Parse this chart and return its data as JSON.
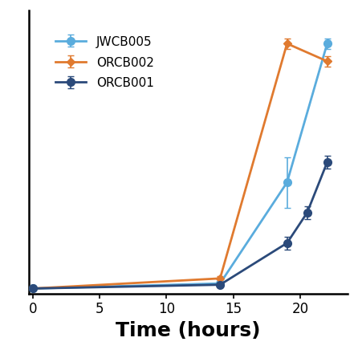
{
  "series": [
    {
      "label": "JWCB005",
      "x": [
        0,
        14,
        19,
        22
      ],
      "y": [
        0.0,
        0.02,
        0.42,
        0.97
      ],
      "yerr": [
        0.0,
        0.005,
        0.1,
        0.02
      ],
      "color": "#5aacdd",
      "marker": "o",
      "markersize": 7,
      "linewidth": 2.0
    },
    {
      "label": "ORCB002",
      "x": [
        0,
        14,
        19,
        22
      ],
      "y": [
        0.0,
        0.04,
        0.97,
        0.9
      ],
      "yerr": [
        0.0,
        0.01,
        0.02,
        0.02
      ],
      "color": "#e07a2f",
      "marker": "D",
      "markersize": 5,
      "linewidth": 2.0
    },
    {
      "label": "ORCB001",
      "x": [
        0,
        14,
        19,
        20.5,
        22
      ],
      "y": [
        0.0,
        0.015,
        0.18,
        0.3,
        0.5
      ],
      "yerr": [
        0.0,
        0.005,
        0.025,
        0.025,
        0.025
      ],
      "color": "#2b4a7a",
      "marker": "o",
      "markersize": 7,
      "linewidth": 2.0
    }
  ],
  "xlabel": "Time (hours)",
  "xlim": [
    -0.3,
    23.5
  ],
  "ylim": [
    -0.02,
    1.1
  ],
  "xticks": [
    0,
    5,
    10,
    15,
    20
  ],
  "legend_loc": "upper left",
  "legend_fontsize": 11,
  "xlabel_fontsize": 18,
  "tick_fontsize": 12,
  "background_color": "#ffffff",
  "figsize": [
    4.46,
    4.46
  ],
  "dpi": 100
}
